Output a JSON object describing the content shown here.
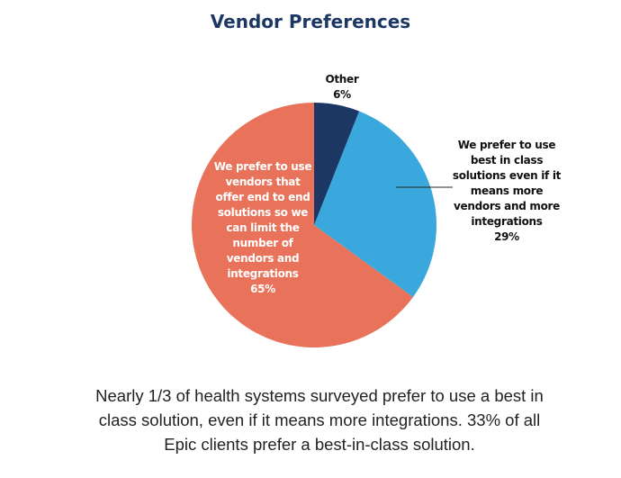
{
  "chart_data": {
    "type": "pie",
    "title": "Vendor Preferences",
    "categories": [
      "Other",
      "We prefer to use best in class solutions even if it means more vendors and more integrations",
      "We prefer to use vendors that offer end to end solutions so we can limit the number of vendors and integrations"
    ],
    "values": [
      6,
      29,
      65
    ],
    "value_labels": [
      "6%",
      "29%",
      "65%"
    ],
    "colors": [
      "#1c3764",
      "#3aa8dc",
      "#e8735a"
    ],
    "caption": "Nearly 1/3 of health systems surveyed prefer to use a best in class solution, even if it means more integrations. 33% of all Epic clients prefer a best-in-class solution."
  }
}
